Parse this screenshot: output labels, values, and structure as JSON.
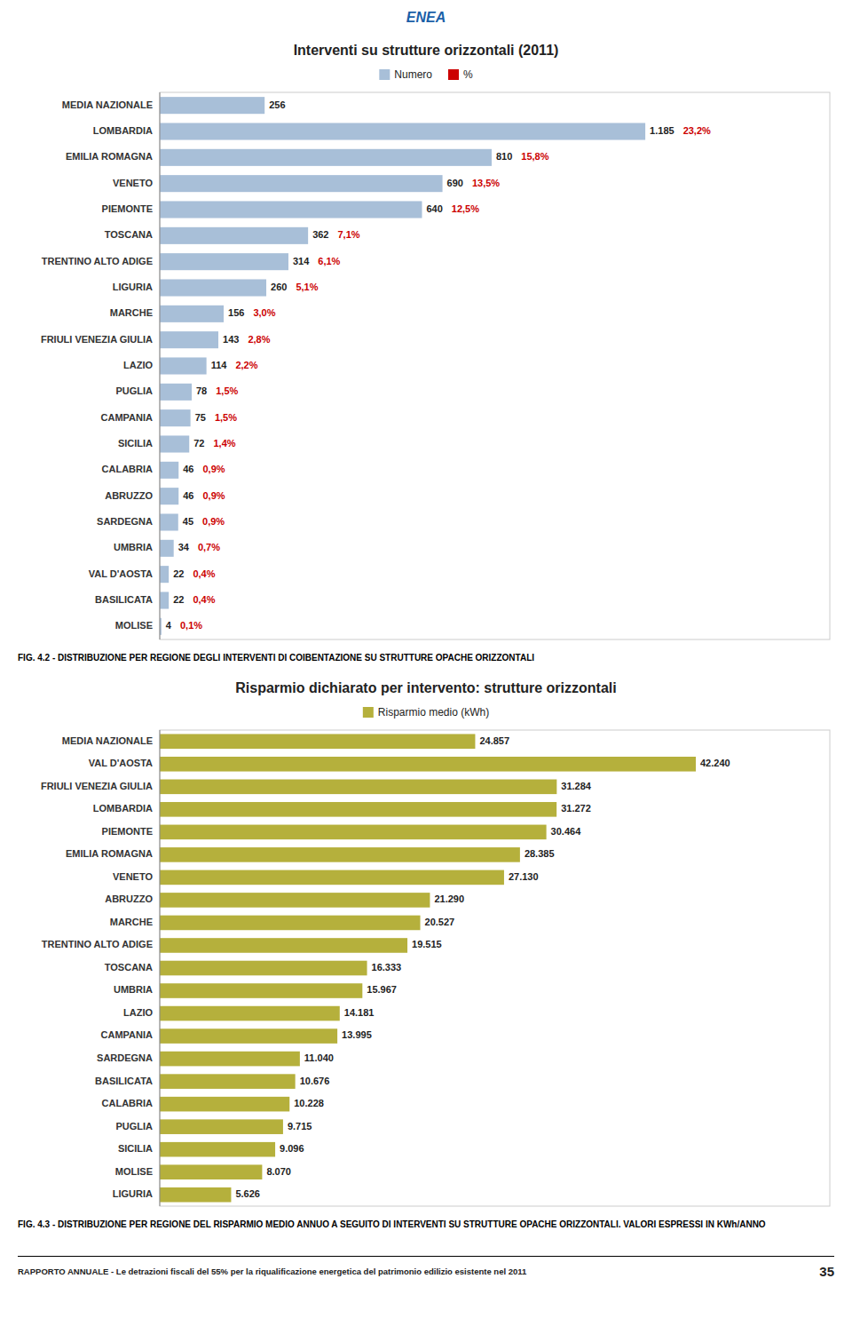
{
  "header": "ENEA",
  "footer": "RAPPORTO ANNUALE - Le detrazioni fiscali del 55% per la riqualificazione energetica del patrimonio edilizio esistente nel 2011",
  "page_number": "35",
  "chart_data": [
    {
      "type": "bar",
      "orientation": "horizontal",
      "title": "Interventi su strutture orizzontali (2011)",
      "caption": "FIG. 4.2 - DISTRIBUZIONE PER REGIONE DEGLI INTERVENTI DI COIBENTAZIONE SU STRUTTURE OPACHE ORIZZONTALI",
      "categories": [
        "MEDIA NAZIONALE",
        "LOMBARDIA",
        "EMILIA ROMAGNA",
        "VENETO",
        "PIEMONTE",
        "TOSCANA",
        "TRENTINO ALTO ADIGE",
        "LIGURIA",
        "MARCHE",
        "FRIULI VENEZIA GIULIA",
        "LAZIO",
        "PUGLIA",
        "CAMPANIA",
        "SICILIA",
        "CALABRIA",
        "ABRUZZO",
        "SARDEGNA",
        "UMBRIA",
        "VAL D'AOSTA",
        "BASILICATA",
        "MOLISE"
      ],
      "series": [
        {
          "name": "Numero",
          "color": "#a8bfd8",
          "type": "bar",
          "values": [
            256,
            1185,
            810,
            690,
            640,
            362,
            314,
            260,
            156,
            143,
            114,
            78,
            75,
            72,
            46,
            46,
            45,
            34,
            22,
            22,
            4
          ],
          "value_labels": [
            "256",
            "1.185",
            "810",
            "690",
            "640",
            "362",
            "314",
            "260",
            "156",
            "143",
            "114",
            "78",
            "75",
            "72",
            "46",
            "46",
            "45",
            "34",
            "22",
            "22",
            "4"
          ]
        },
        {
          "name": "%",
          "color": "#cc0000",
          "type": "label",
          "values": [
            null,
            23.2,
            15.8,
            13.5,
            12.5,
            7.1,
            6.1,
            5.1,
            3.0,
            2.8,
            2.2,
            1.5,
            1.5,
            1.4,
            0.9,
            0.9,
            0.9,
            0.7,
            0.4,
            0.4,
            0.1
          ],
          "value_labels": [
            null,
            "23,2%",
            "15,8%",
            "13,5%",
            "12,5%",
            "7,1%",
            "6,1%",
            "5,1%",
            "3,0%",
            "2,8%",
            "2,2%",
            "1,5%",
            "1,5%",
            "1,4%",
            "0,9%",
            "0,9%",
            "0,9%",
            "0,7%",
            "0,4%",
            "0,4%",
            "0,1%"
          ]
        }
      ],
      "xlim": [
        0,
        1635.3
      ],
      "tick_labels": "y",
      "data_labels": true,
      "legend": "top",
      "grid": false
    },
    {
      "type": "bar",
      "orientation": "horizontal",
      "title": "Risparmio dichiarato per intervento: strutture orizzontali",
      "caption": "FIG. 4.3 - DISTRIBUZIONE PER REGIONE DEL RISPARMIO MEDIO ANNUO A SEGUITO DI INTERVENTI SU STRUTTURE OPACHE ORIZZONTALI. VALORI ESPRESSI IN KWh/ANNO",
      "categories": [
        "MEDIA NAZIONALE",
        "VAL D'AOSTA",
        "FRIULI VENEZIA GIULIA",
        "LOMBARDIA",
        "PIEMONTE",
        "EMILIA ROMAGNA",
        "VENETO",
        "ABRUZZO",
        "MARCHE",
        "TRENTINO ALTO ADIGE",
        "TOSCANA",
        "UMBRIA",
        "LAZIO",
        "CAMPANIA",
        "SARDEGNA",
        "BASILICATA",
        "CALABRIA",
        "PUGLIA",
        "SICILIA",
        "MOLISE",
        "LIGURIA"
      ],
      "series": [
        {
          "name": "Risparmio medio (kWh)",
          "color": "#b5b03c",
          "type": "bar",
          "values": [
            24857,
            42240,
            31284,
            31272,
            30464,
            28385,
            27130,
            21290,
            20527,
            19515,
            16333,
            15967,
            14181,
            13995,
            11040,
            10676,
            10228,
            9715,
            9096,
            8070,
            5626
          ],
          "value_labels": [
            "24.857",
            "42.240",
            "31.284",
            "31.272",
            "30.464",
            "28.385",
            "27.130",
            "21.290",
            "20.527",
            "19.515",
            "16.333",
            "15.967",
            "14.181",
            "13.995",
            "11.040",
            "10.676",
            "10.228",
            "9.715",
            "9.096",
            "8.070",
            "5.626"
          ]
        }
      ],
      "xlim": [
        0,
        52800
      ],
      "tick_labels": "y",
      "data_labels": true,
      "legend": "top",
      "grid": false
    }
  ]
}
